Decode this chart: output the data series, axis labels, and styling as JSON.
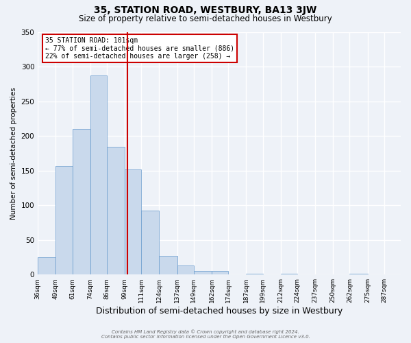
{
  "title": "35, STATION ROAD, WESTBURY, BA13 3JW",
  "subtitle": "Size of property relative to semi-detached houses in Westbury",
  "xlabel": "Distribution of semi-detached houses by size in Westbury",
  "ylabel": "Number of semi-detached properties",
  "bin_labels": [
    "36sqm",
    "49sqm",
    "61sqm",
    "74sqm",
    "86sqm",
    "99sqm",
    "111sqm",
    "124sqm",
    "137sqm",
    "149sqm",
    "162sqm",
    "174sqm",
    "187sqm",
    "199sqm",
    "212sqm",
    "224sqm",
    "237sqm",
    "250sqm",
    "262sqm",
    "275sqm",
    "287sqm"
  ],
  "bin_edges": [
    36,
    49,
    61,
    74,
    86,
    99,
    111,
    124,
    137,
    149,
    162,
    174,
    187,
    199,
    212,
    224,
    237,
    250,
    262,
    275,
    287
  ],
  "bar_heights": [
    25,
    157,
    210,
    287,
    184,
    152,
    92,
    27,
    13,
    5,
    5,
    0,
    1,
    0,
    1,
    0,
    0,
    0,
    1,
    0,
    0
  ],
  "bar_color": "#c9d9ec",
  "bar_edge_color": "#6699cc",
  "property_value": 101,
  "vline_color": "#cc0000",
  "ylim": [
    0,
    350
  ],
  "yticks": [
    0,
    50,
    100,
    150,
    200,
    250,
    300,
    350
  ],
  "annotation_title": "35 STATION ROAD: 101sqm",
  "annotation_line1": "← 77% of semi-detached houses are smaller (886)",
  "annotation_line2": "22% of semi-detached houses are larger (258) →",
  "annotation_box_color": "#ffffff",
  "annotation_box_edge": "#cc0000",
  "footer_line1": "Contains HM Land Registry data © Crown copyright and database right 2024.",
  "footer_line2": "Contains public sector information licensed under the Open Government Licence v3.0.",
  "background_color": "#eef2f8",
  "grid_color": "#ffffff",
  "title_fontsize": 10,
  "subtitle_fontsize": 8.5,
  "xlabel_fontsize": 9,
  "ylabel_fontsize": 7.5
}
